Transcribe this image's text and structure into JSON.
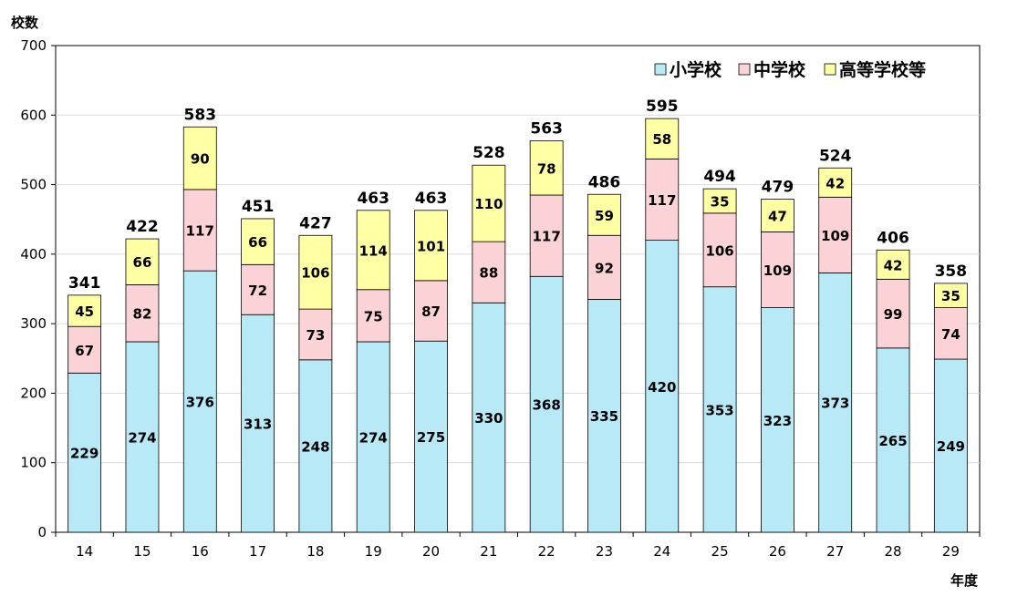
{
  "chart_data": {
    "type": "bar",
    "stacked": true,
    "ylabel": "校数",
    "xlabel": "年度",
    "ylim": [
      0,
      700
    ],
    "yticks": [
      0,
      100,
      200,
      300,
      400,
      500,
      600,
      700
    ],
    "grid": true,
    "legend_position": "top-right",
    "categories": [
      "14",
      "15",
      "16",
      "17",
      "18",
      "19",
      "20",
      "21",
      "22",
      "23",
      "24",
      "25",
      "26",
      "27",
      "28",
      "29"
    ],
    "series": [
      {
        "name": "小学校",
        "color": "#b7e9f7",
        "values": [
          229,
          274,
          376,
          313,
          248,
          274,
          275,
          330,
          368,
          335,
          420,
          353,
          323,
          373,
          265,
          249
        ]
      },
      {
        "name": "中学校",
        "color": "#fbd3d6",
        "values": [
          67,
          82,
          117,
          72,
          73,
          75,
          87,
          88,
          117,
          92,
          117,
          106,
          109,
          109,
          99,
          74
        ]
      },
      {
        "name": "高等学校等",
        "color": "#ffffa3",
        "values": [
          45,
          66,
          90,
          66,
          106,
          114,
          101,
          110,
          78,
          59,
          58,
          35,
          47,
          42,
          42,
          35
        ]
      }
    ],
    "totals": [
      341,
      422,
      583,
      451,
      427,
      463,
      463,
      528,
      563,
      486,
      595,
      494,
      479,
      524,
      406,
      358
    ]
  }
}
